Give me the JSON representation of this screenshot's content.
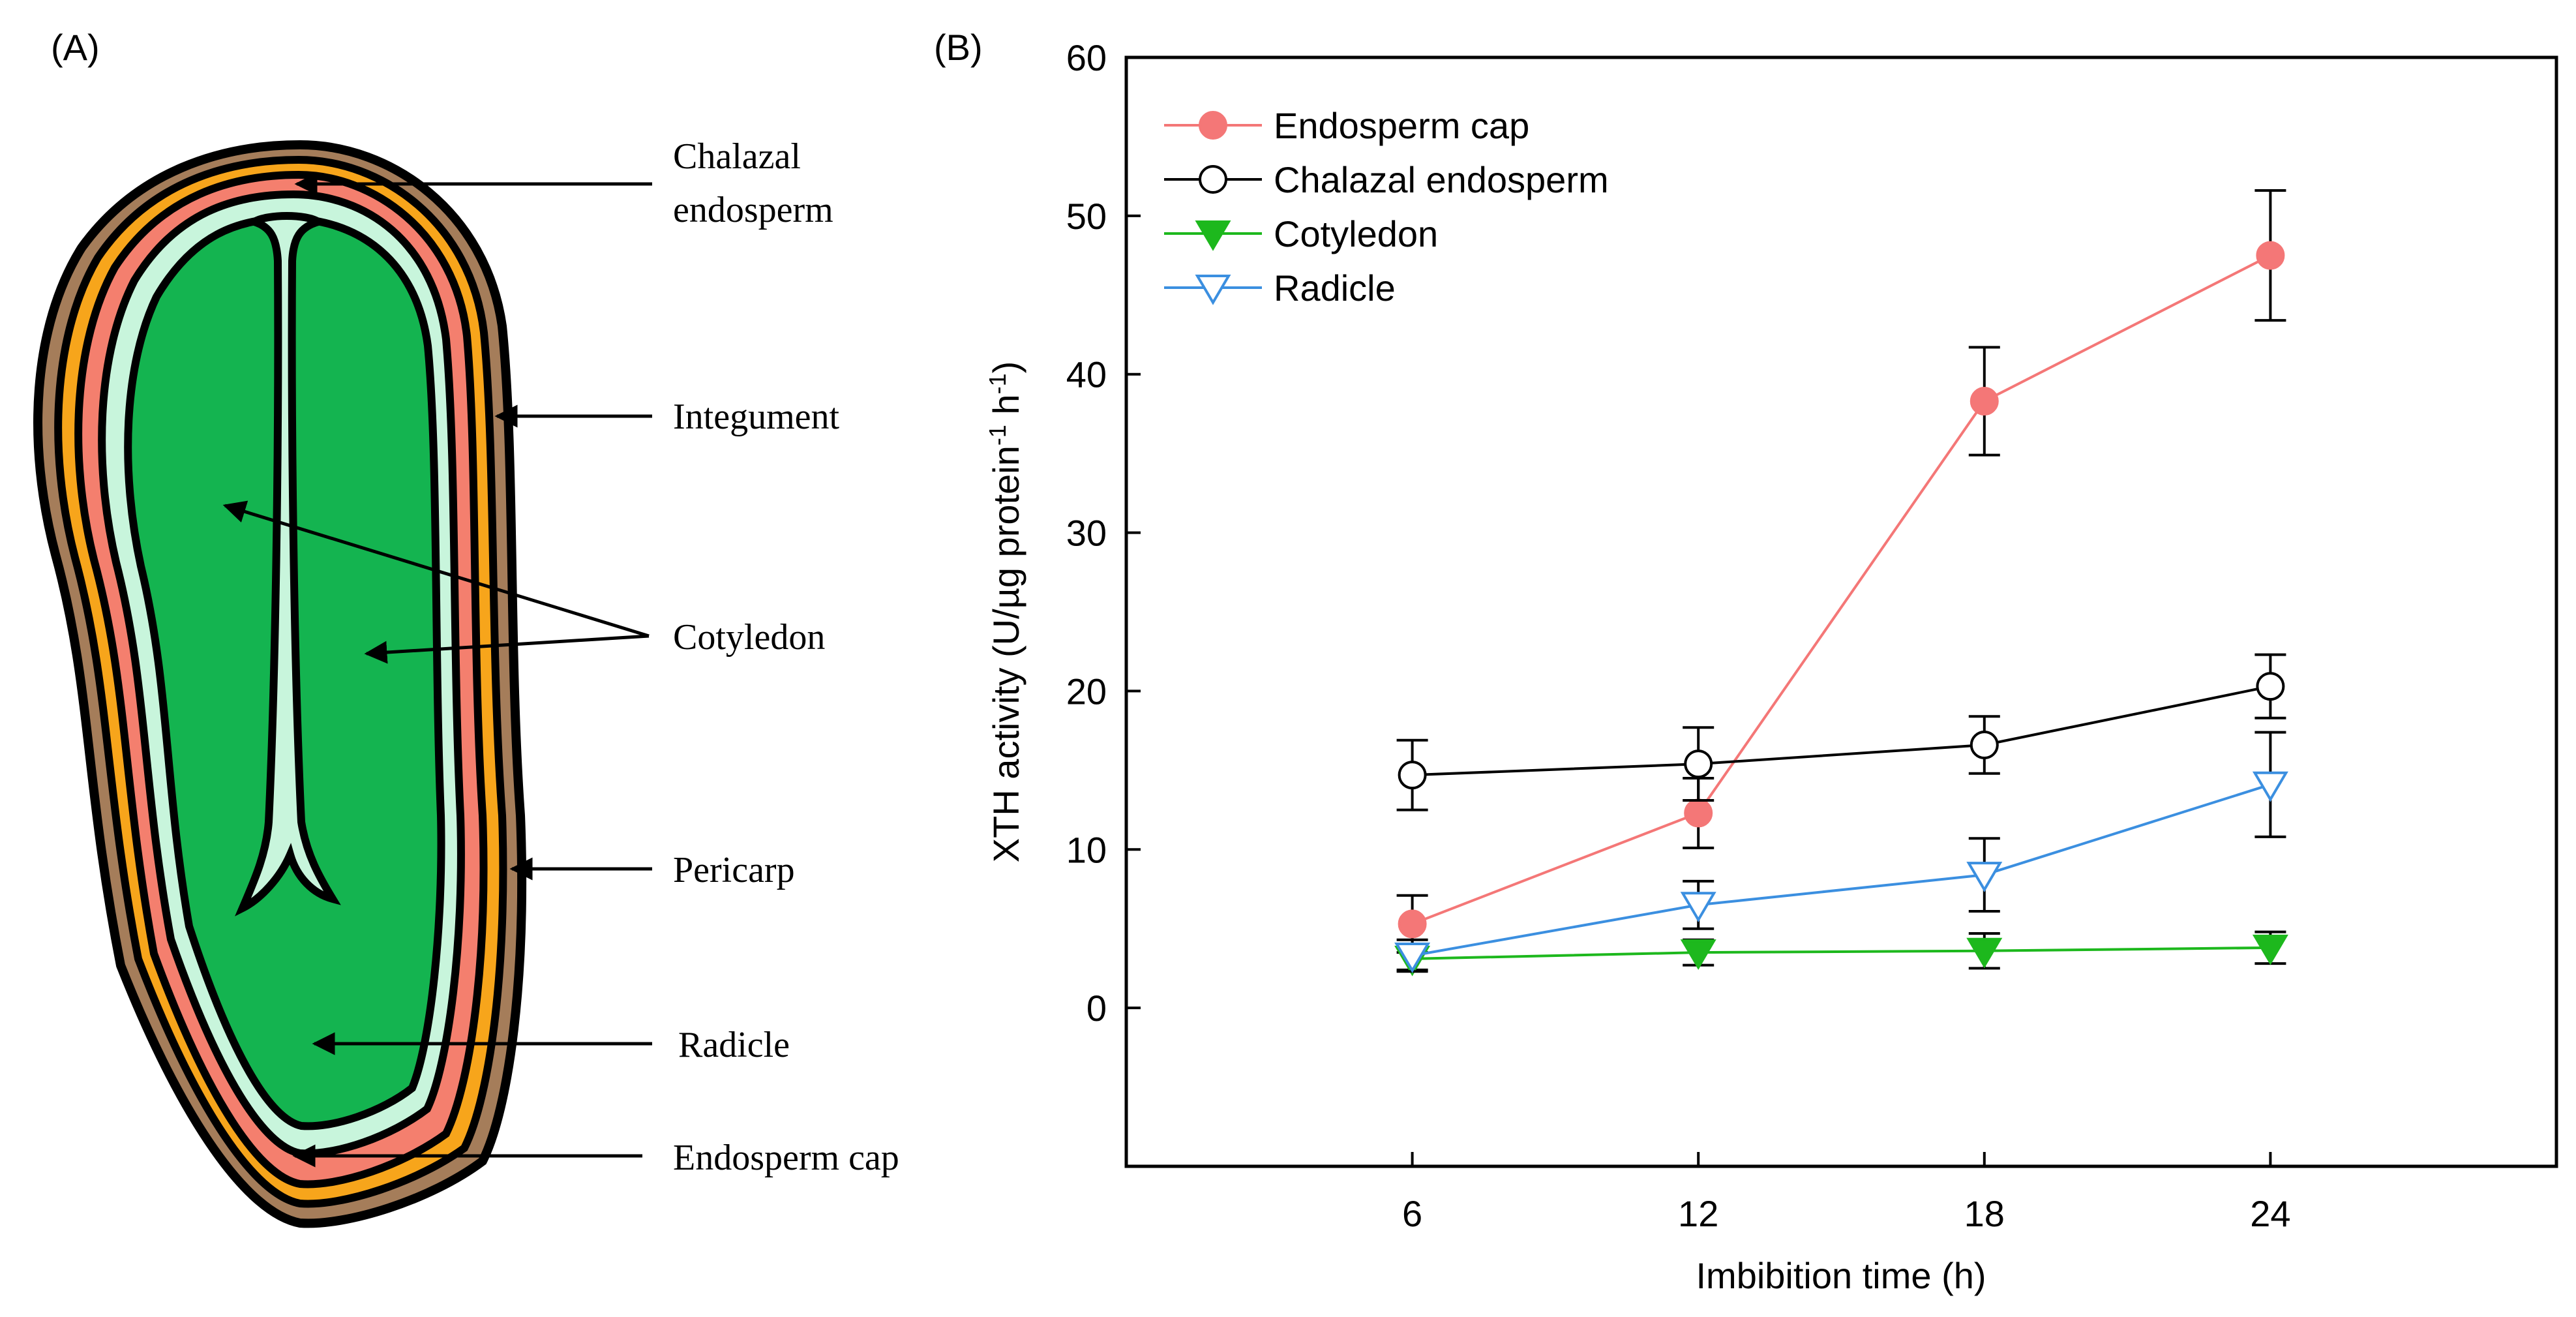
{
  "panel_a": {
    "label": "(A)",
    "labels": {
      "chalazal_line1": "Chalazal",
      "chalazal_line2": "endosperm",
      "integument": "Integument",
      "cotyledon": "Cotyledon",
      "pericarp": "Pericarp",
      "radicle": "Radicle",
      "endosperm_cap": "Endosperm cap"
    },
    "colors": {
      "pericarp": "#a57d5a",
      "integument": "#f7a51b",
      "endosperm": "#f47f6e",
      "embryo_outer": "#c8f5dc",
      "embryo": "#14b450",
      "outline": "#000000"
    }
  },
  "panel_b": {
    "label": "(B)"
  },
  "chart_data": {
    "type": "line",
    "xlabel": "Imbibition time (h)",
    "ylabel": "XTH activity (U/µg protein·¹ h·¹)",
    "ylabel_parts": {
      "main": "XTH activity (U/µg protein",
      "sup1": "-1",
      "mid": " h",
      "sup2": "-1",
      "end": ")"
    },
    "x": [
      6,
      12,
      18,
      24
    ],
    "xlim": [
      0,
      30
    ],
    "ylim": [
      -10,
      60
    ],
    "yticks": [
      0,
      10,
      20,
      30,
      40,
      50,
      60
    ],
    "legend_position": "top-left",
    "series": [
      {
        "name": "Endosperm cap",
        "marker": "circle-filled",
        "color": "#f47777",
        "values": [
          5.3,
          12.3,
          38.3,
          47.5
        ],
        "errors": [
          1.8,
          2.2,
          3.4,
          4.1
        ]
      },
      {
        "name": "Chalazal endosperm",
        "marker": "circle-open",
        "color": "#000000",
        "values": [
          14.7,
          15.4,
          16.6,
          20.3
        ],
        "errors": [
          2.2,
          2.3,
          1.8,
          2.0
        ]
      },
      {
        "name": "Cotyledon",
        "marker": "triangle-down-filled",
        "color": "#1db81d",
        "values": [
          3.1,
          3.5,
          3.6,
          3.8
        ],
        "errors": [
          0.7,
          0.8,
          1.1,
          1.0
        ]
      },
      {
        "name": "Radicle",
        "marker": "triangle-down-open",
        "color": "#3b8fe0",
        "values": [
          3.3,
          6.5,
          8.4,
          14.1
        ],
        "errors": [
          1.0,
          1.5,
          2.3,
          3.3
        ]
      }
    ]
  }
}
